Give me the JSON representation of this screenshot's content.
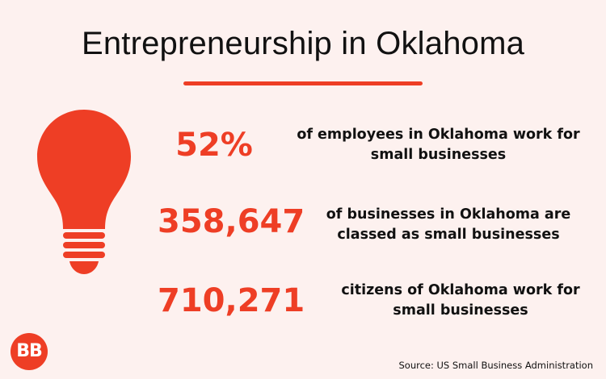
{
  "header": {
    "title": "Entrepreneurship in Oklahoma"
  },
  "stats": [
    {
      "value": "52%",
      "description_line1": "of employees in Oklahoma work for",
      "description_line2": "small businesses"
    },
    {
      "value": "358,647",
      "description_line1": "of businesses in Oklahoma are",
      "description_line2": "classed as small businesses"
    },
    {
      "value": "710,271",
      "description_line1": "citizens of Oklahoma work for",
      "description_line2": "small businesses"
    }
  ],
  "footer": {
    "logo_text": "BB",
    "source": "Source: US Small Business Administration"
  },
  "colors": {
    "accent": "#ee3e25",
    "background": "#fdf1ef"
  },
  "icons": {
    "illustration": "lightbulb-icon"
  }
}
